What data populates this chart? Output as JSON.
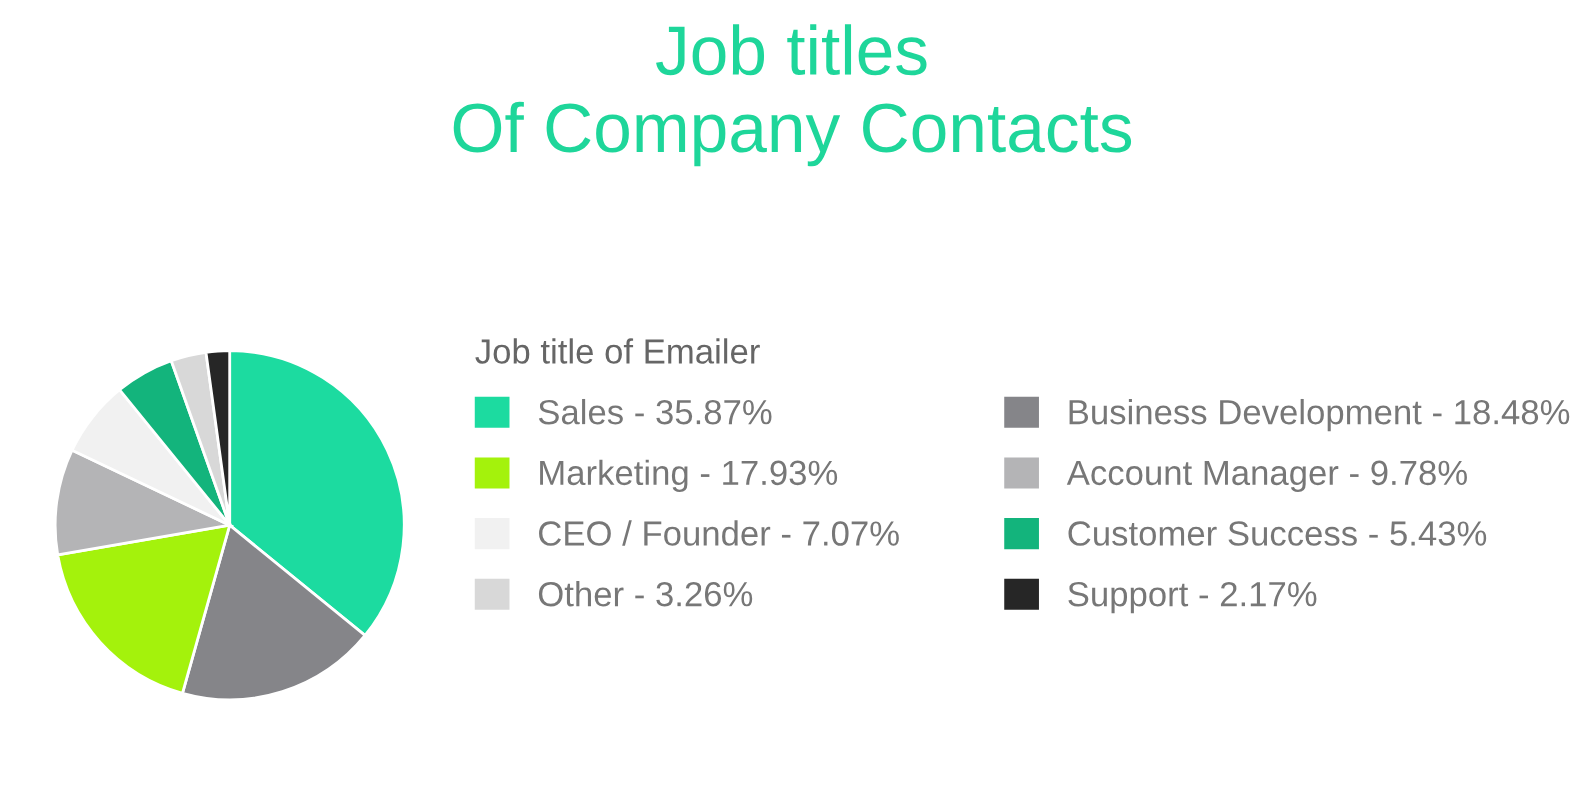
{
  "chart_data": {
    "type": "pie",
    "title": "Job titles\nOf Company Contacts",
    "legend_title": "Job title of Emailer",
    "legend": "right",
    "categories": [
      "Sales",
      "Business Development",
      "Marketing",
      "Account Manager",
      "CEO / Founder",
      "Customer Success",
      "Other",
      "Support"
    ],
    "values": [
      35.87,
      18.48,
      17.93,
      9.78,
      7.07,
      5.43,
      3.26,
      2.17
    ],
    "value_labels": [
      "35.87%",
      "18.48%",
      "17.93%",
      "9.78%",
      "7.07%",
      "5.43%",
      "3.26%",
      "2.17%"
    ],
    "colors": [
      "#1cdba0",
      "#858589",
      "#a4f20c",
      "#b4b4b6",
      "#f1f1f1",
      "#13b47c",
      "#d8d8d8",
      "#262626"
    ]
  }
}
